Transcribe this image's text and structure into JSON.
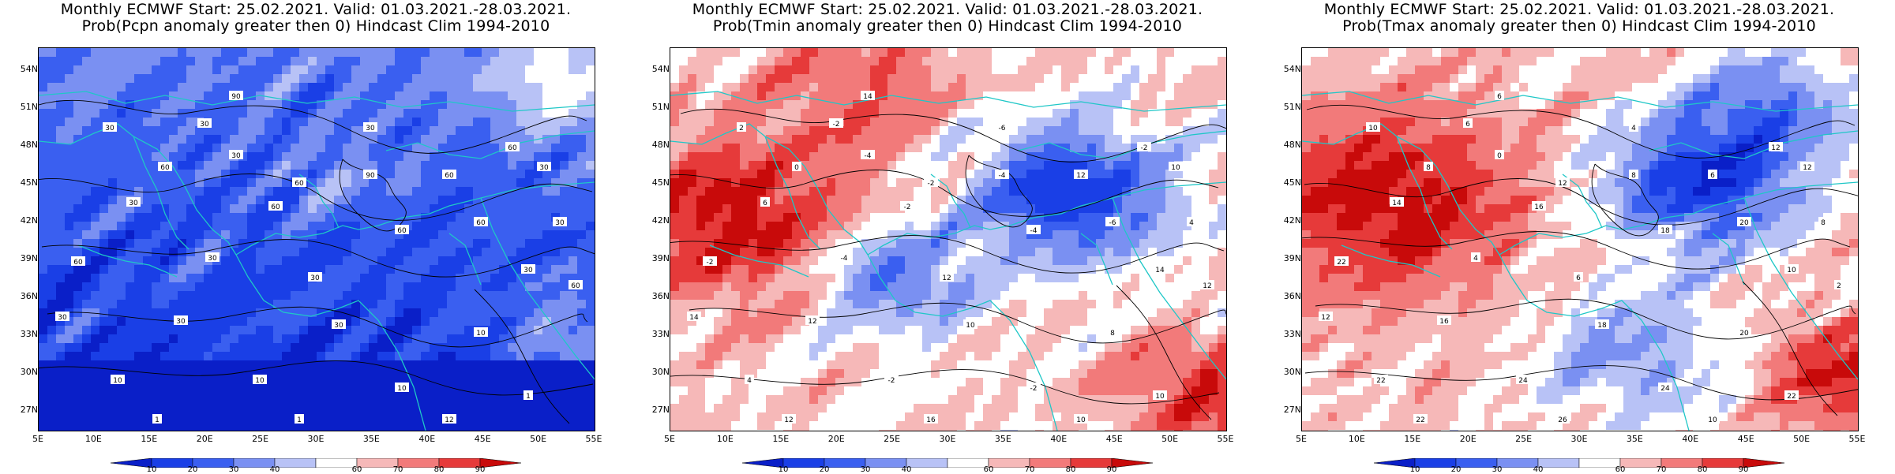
{
  "panels": [
    {
      "id": "pcpn",
      "title_line1": "Monthly ECMWF Start: 25.02.2021. Valid: 01.03.2021.-28.03.2021.",
      "title_line2": "Prob(Pcpn anomaly greater then 0) Hindcast Clim 1994-2010",
      "contour_labels": [
        "30",
        "30",
        "30",
        "30",
        "60",
        "60",
        "60",
        "30",
        "30",
        "60",
        "60",
        "60",
        "60",
        "30",
        "90",
        "60",
        "30",
        "30",
        "30",
        "30",
        "30",
        "10",
        "10",
        "10",
        "10",
        "1",
        "1",
        "1",
        "12",
        "60",
        "90",
        "30"
      ],
      "hot_color": "#ef6a6a"
    },
    {
      "id": "tmin",
      "title_line1": "Monthly ECMWF Start: 25.02.2021. Valid: 01.03.2021.-28.03.2021.",
      "title_line2": "Prob(Tmin anomaly greater then 0) Hindcast Clim 1994-2010",
      "contour_labels": [
        "-2",
        "-6",
        "-4",
        "2",
        "0",
        "-2",
        "-2",
        "10",
        "6",
        "-2",
        "-4",
        "-6",
        "-2",
        "-4",
        "-4",
        "12",
        "12",
        "14",
        "14",
        "12",
        "10",
        "8",
        "4",
        "-2",
        "-2",
        "10",
        "12",
        "16",
        "10",
        "12",
        "14",
        "4"
      ],
      "hot_color": "#d62020"
    },
    {
      "id": "tmax",
      "title_line1": "Monthly ECMWF Start: 25.02.2021. Valid: 01.03.2021.-28.03.2021.",
      "title_line2": "Prob(Tmax anomaly greater then 0) Hindcast Clim 1994-2010",
      "contour_labels": [
        "6",
        "4",
        "0",
        "10",
        "8",
        "12",
        "12",
        "12",
        "14",
        "16",
        "18",
        "20",
        "22",
        "4",
        "8",
        "6",
        "6",
        "10",
        "12",
        "16",
        "18",
        "20",
        "22",
        "24",
        "24",
        "22",
        "22",
        "26",
        "10",
        "2",
        "6",
        "8"
      ],
      "hot_color": "#c81414"
    }
  ],
  "axes": {
    "lat_labels": [
      "54N",
      "51N",
      "48N",
      "45N",
      "42N",
      "39N",
      "36N",
      "33N",
      "30N",
      "27N"
    ],
    "lon_labels": [
      "5E",
      "10E",
      "15E",
      "20E",
      "25E",
      "30E",
      "35E",
      "40E",
      "45E",
      "50E",
      "55E"
    ]
  },
  "colorbar": {
    "labels": [
      "10",
      "20",
      "30",
      "40",
      "60",
      "70",
      "80",
      "90"
    ],
    "colors": [
      "#0a1fc8",
      "#1a3fe6",
      "#3a5ff0",
      "#7a90f2",
      "#b8c2f6",
      "#ffffff",
      "#f6b8b8",
      "#f27a7a",
      "#e63a3a",
      "#c80a0a"
    ]
  }
}
